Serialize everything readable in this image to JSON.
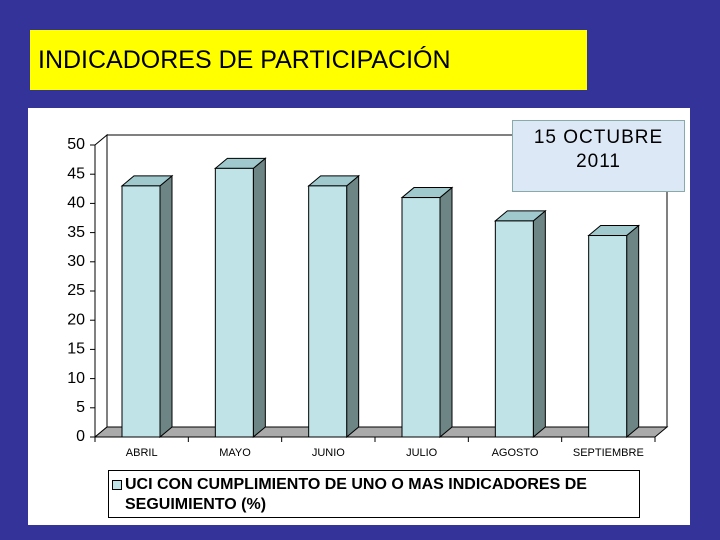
{
  "chart_data": {
    "type": "bar",
    "title": "INDICADORES DE PARTICIPACIÓN",
    "annotation": "15 OCTUBRE 2011",
    "categories": [
      "ABRIL",
      "MAYO",
      "JUNIO",
      "JULIO",
      "AGOSTO",
      "SEPTIEMBRE"
    ],
    "series": [
      {
        "name": "UCI CON CUMPLIMIENTO DE UNO O MAS INDICADORES DE SEGUIMIENTO (%)",
        "color": "#bfe3e6",
        "values": [
          43,
          46,
          43,
          41,
          37,
          34.5
        ]
      }
    ],
    "ylim": [
      0,
      50
    ],
    "yticks": [
      0,
      5,
      10,
      15,
      20,
      25,
      30,
      35,
      40,
      45,
      50
    ],
    "grid": false
  }
}
